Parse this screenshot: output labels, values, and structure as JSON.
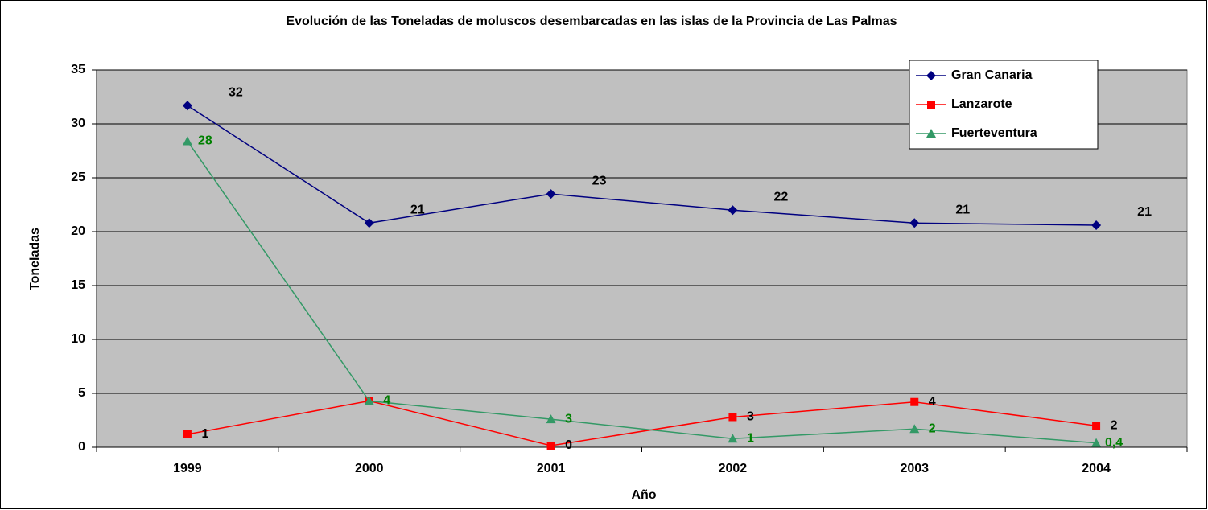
{
  "chart_data": {
    "type": "line",
    "title": "Evolución de las Toneladas de moluscos desembarcadas en las islas de la Provincia de Las Palmas",
    "x_label": "Año",
    "y_label": "Toneladas",
    "categories": [
      "1999",
      "2000",
      "2001",
      "2002",
      "2003",
      "2004"
    ],
    "series": [
      {
        "name": "Gran Canaria",
        "color": "#000080",
        "marker": "diamond",
        "label_color": "#000000",
        "values": [
          31.7,
          20.8,
          23.5,
          22.0,
          20.8,
          20.6
        ],
        "value_labels": [
          "32",
          "21",
          "23",
          "22",
          "21",
          "21"
        ]
      },
      {
        "name": "Lanzarote",
        "color": "#ff0000",
        "marker": "square",
        "label_color": "#000000",
        "values": [
          1.2,
          4.3,
          0.15,
          2.8,
          4.2,
          2.0
        ],
        "value_labels": [
          "1",
          "4",
          "0",
          "3",
          "4",
          "2"
        ]
      },
      {
        "name": "Fuerteventura",
        "color": "#339966",
        "marker": "triangle",
        "label_color": "#008000",
        "values": [
          28.4,
          4.3,
          2.6,
          0.8,
          1.7,
          0.4
        ],
        "value_labels": [
          "28",
          "4",
          "3",
          "1",
          "2",
          "0,4"
        ]
      }
    ],
    "ylim": [
      0,
      35
    ],
    "yticks": [
      0,
      5,
      10,
      15,
      20,
      25,
      30,
      35
    ],
    "grid": true,
    "plot_background": "#c0c0c0",
    "legend": "top-right"
  }
}
